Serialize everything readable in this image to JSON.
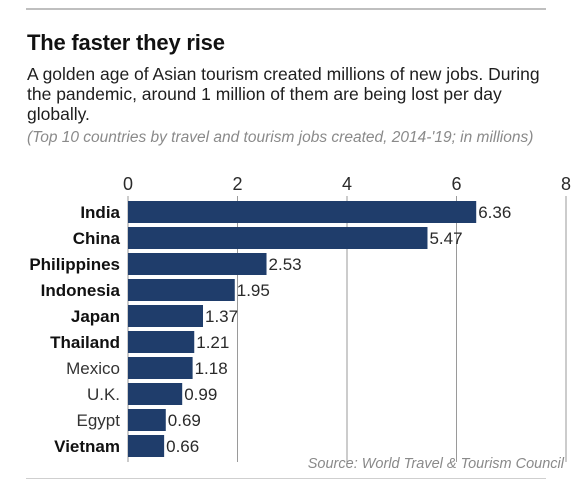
{
  "header": {
    "title": "The faster they rise",
    "subtitle": "A golden age of Asian tourism created millions of new jobs. During the pandemic, around 1 million of them are being lost per day globally.",
    "note": "(Top 10 countries by travel and tourism jobs created, 2014-'19; in millions)"
  },
  "footer": {
    "source": "Source: World Travel & Tourism Council"
  },
  "colors": {
    "bar": "#1f3d6b",
    "gridline": "#9a9a9a",
    "text": "#1a1a1a",
    "muted": "#8a8a8a"
  },
  "chart_data": {
    "type": "bar",
    "orientation": "horizontal",
    "title": "The faster they rise",
    "categories": [
      "India",
      "China",
      "Philippines",
      "Indonesia",
      "Japan",
      "Thailand",
      "Mexico",
      "U.K.",
      "Egypt",
      "Vietnam"
    ],
    "bold_categories": [
      "India",
      "China",
      "Philippines",
      "Indonesia",
      "Japan",
      "Thailand",
      "Vietnam"
    ],
    "values": [
      6.36,
      5.47,
      2.53,
      1.95,
      1.37,
      1.21,
      1.18,
      0.99,
      0.69,
      0.66
    ],
    "value_labels": [
      "6.36",
      "5.47",
      "2.53",
      "1.95",
      "1.37",
      "1.21",
      "1.18",
      "0.99",
      "0.69",
      "0.66"
    ],
    "xlim": [
      0,
      8
    ],
    "xticks": [
      0,
      2,
      4,
      6,
      8
    ],
    "xtick_labels": [
      "0",
      "2",
      "4",
      "6",
      "8"
    ],
    "axis_position": "top",
    "grid": true
  }
}
